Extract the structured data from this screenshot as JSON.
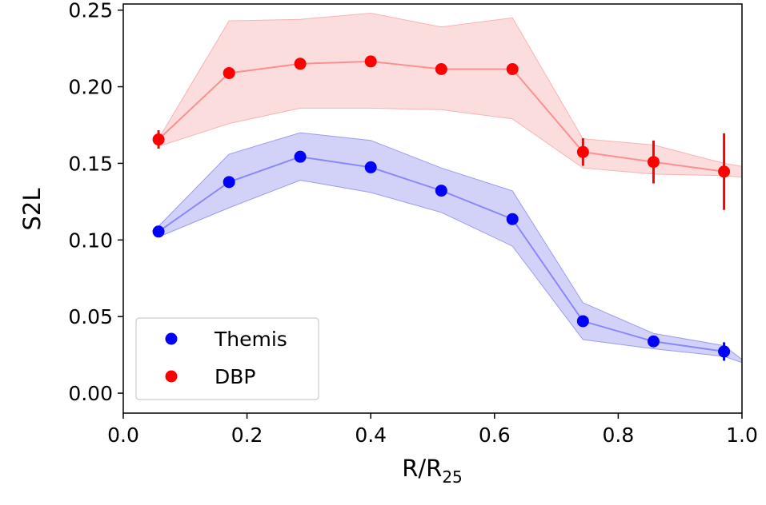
{
  "chart_data": {
    "type": "scatter",
    "title": "",
    "xlabel": "R/R",
    "xlabel_subscript": "25",
    "ylabel": "S2L",
    "xlim": [
      0.0,
      1.0
    ],
    "ylim": [
      -0.013,
      0.254
    ],
    "xticks": [
      0.0,
      0.2,
      0.4,
      0.6,
      0.8,
      1.0
    ],
    "xtick_labels": [
      "0.0",
      "0.2",
      "0.4",
      "0.6",
      "0.8",
      "1.0"
    ],
    "yticks": [
      0.0,
      0.05,
      0.1,
      0.15,
      0.2,
      0.25
    ],
    "ytick_labels": [
      "0.00",
      "0.05",
      "0.10",
      "0.15",
      "0.20",
      "0.25"
    ],
    "grid": false,
    "legend_position": "lower-left",
    "series": [
      {
        "name": "Themis",
        "color": "#0000ff",
        "band_color": "#9b9bf0",
        "x": [
          0.057,
          0.171,
          0.286,
          0.4,
          0.514,
          0.629,
          0.743,
          0.857,
          0.971
        ],
        "y": [
          0.1055,
          0.1378,
          0.1543,
          0.1474,
          0.1322,
          0.1136,
          0.047,
          0.0338,
          0.0272
        ],
        "yerr": [
          0.002,
          0.002,
          0.002,
          0.002,
          0.002,
          0.002,
          0.002,
          0.002,
          0.006
        ],
        "band_x": [
          0.057,
          0.171,
          0.286,
          0.4,
          0.514,
          0.629,
          0.743,
          0.857,
          0.971,
          1.0
        ],
        "band_lower": [
          0.102,
          0.121,
          0.139,
          0.131,
          0.118,
          0.096,
          0.035,
          0.029,
          0.024,
          0.02
        ],
        "band_upper": [
          0.109,
          0.156,
          0.17,
          0.165,
          0.147,
          0.132,
          0.059,
          0.039,
          0.031,
          0.022
        ]
      },
      {
        "name": "DBP",
        "color": "#ff0000",
        "band_color": "#f7b3b3",
        "x": [
          0.057,
          0.171,
          0.286,
          0.4,
          0.514,
          0.629,
          0.743,
          0.857,
          0.971
        ],
        "y": [
          0.1656,
          0.2089,
          0.215,
          0.2165,
          0.2115,
          0.2115,
          0.1574,
          0.1509,
          0.1446
        ],
        "yerr": [
          0.006,
          0.002,
          0.002,
          0.002,
          0.002,
          0.002,
          0.009,
          0.014,
          0.025
        ],
        "band_x": [
          0.057,
          0.171,
          0.286,
          0.4,
          0.514,
          0.629,
          0.743,
          0.857,
          0.971,
          1.0
        ],
        "band_lower": [
          0.161,
          0.176,
          0.186,
          0.186,
          0.185,
          0.179,
          0.147,
          0.143,
          0.142,
          0.141
        ],
        "band_upper": [
          0.166,
          0.243,
          0.244,
          0.248,
          0.239,
          0.245,
          0.166,
          0.162,
          0.15,
          0.148
        ]
      }
    ]
  }
}
